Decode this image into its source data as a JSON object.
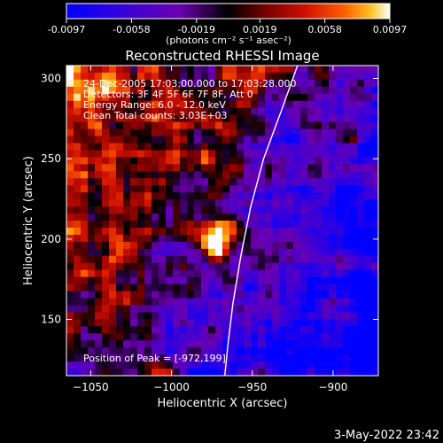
{
  "colorbar": {
    "min": -0.0097,
    "max": 0.0097,
    "tick_values": [
      -0.0097,
      -0.0058,
      -0.0019,
      0.0019,
      0.0058,
      0.0097
    ],
    "tick_labels": [
      "-0.0097",
      "-0.0058",
      "-0.0019",
      "0.0019",
      "0.0058",
      "0.0097"
    ],
    "units_label": "(photons cm⁻² s⁻¹ asec⁻²)",
    "colors": [
      "#0000ff",
      "#3b00d8",
      "#6a00b0",
      "#000000",
      "#7a0000",
      "#d01000",
      "#ff6000",
      "#ffc020",
      "#ffffff"
    ]
  },
  "chart_data": {
    "type": "heatmap",
    "title": "Reconstructed RHESSI Image",
    "xlabel": "Heliocentric X (arcsec)",
    "ylabel": "Heliocentric Y (arcsec)",
    "xlim": [
      -1065,
      -872
    ],
    "ylim": [
      115,
      308
    ],
    "x_ticks": [
      -1050,
      -1000,
      -950,
      -900
    ],
    "y_ticks": [
      150,
      200,
      250,
      300
    ],
    "x_tick_labels": [
      "−1050",
      "−1000",
      "−950",
      "−900"
    ],
    "y_tick_labels": [
      "150",
      "200",
      "250",
      "300"
    ],
    "peak": {
      "x": -972,
      "y": 199,
      "value": 0.0097
    },
    "limb_points": [
      [
        -922,
        308
      ],
      [
        -932,
        280
      ],
      [
        -943,
        250
      ],
      [
        -951,
        220
      ],
      [
        -957,
        190
      ],
      [
        -962,
        160
      ],
      [
        -965,
        135
      ],
      [
        -967,
        115
      ]
    ],
    "annotations": [
      "24-Dec-2005 17:03:00.000 to 17:03:28.000",
      "Detectors: 3F 4F 5F 6F 7F 8F, Att 0",
      "Energy Range: 6.0 - 12.0 keV",
      "Clean    Total counts: 3.03E+03"
    ],
    "peak_label": "Position of Peak = [-972,199]"
  },
  "footer": {
    "timestamp": "3-May-2022 23:42"
  }
}
